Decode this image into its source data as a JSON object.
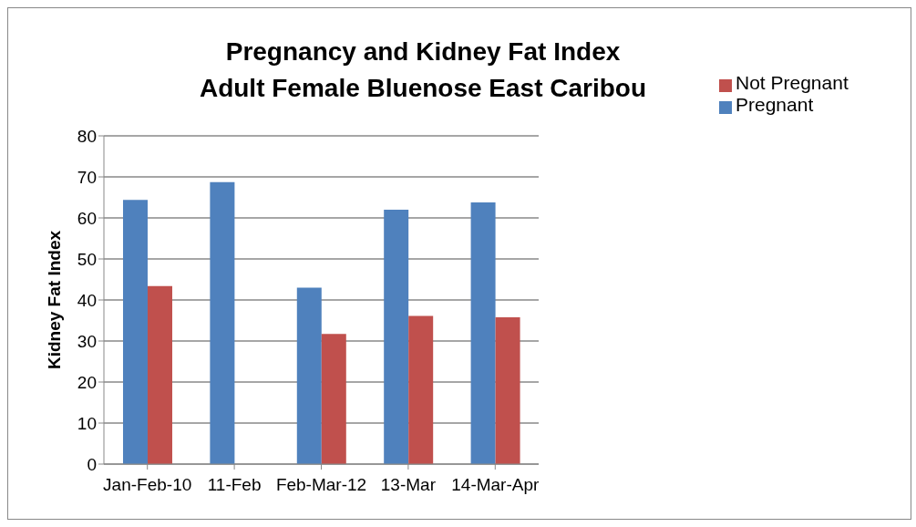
{
  "chart_data": {
    "type": "bar",
    "title": "Pregnancy and Kidney Fat Index\nAdult Female Bluenose East Caribou",
    "ylabel": "Kidney Fat Index",
    "categories": [
      "Jan-Feb-10",
      "11-Feb",
      "Feb-Mar-12",
      "13-Mar",
      "14-Mar-Apr"
    ],
    "series": [
      {
        "name": "Pregnant",
        "color": "#4f81bd",
        "values": [
          64.4,
          68.7,
          43.0,
          62.0,
          63.8
        ]
      },
      {
        "name": "Not Pregnant",
        "color": "#c0504d",
        "values": [
          43.4,
          null,
          31.7,
          36.1,
          35.8
        ]
      }
    ],
    "ylim": [
      0,
      80
    ],
    "yticks": [
      0,
      10,
      20,
      30,
      40,
      50,
      60,
      70,
      80
    ],
    "grid": "y",
    "legend": "right"
  }
}
